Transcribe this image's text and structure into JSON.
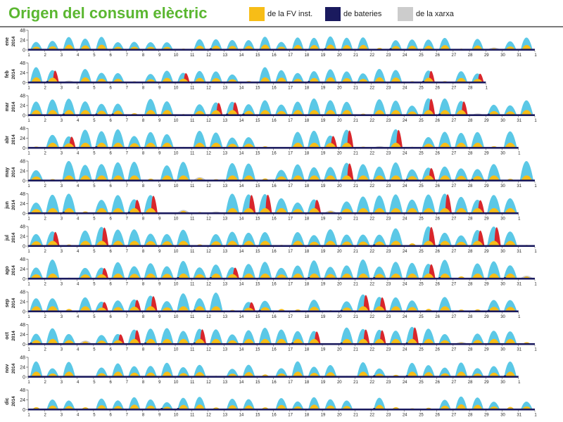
{
  "title": "Origen del consum elèctric",
  "colors": {
    "title": "#5bb731",
    "pv": "#f7bd17",
    "batteries": "#1a1a5e",
    "grid": "#cccccc",
    "surplus": "#5bc8e6",
    "peak": "#d9262b",
    "axis": "#444444"
  },
  "legend": [
    {
      "label": "de la FV inst.",
      "color": "#f7bd17"
    },
    {
      "label": "de bateries",
      "color": "#1a1a5e"
    },
    {
      "label": "de la xarxa",
      "color": "#cccccc"
    }
  ],
  "chart_data": {
    "type": "area",
    "title": "Origen del consum elèctric",
    "year_label": "2014",
    "ylim": [
      0,
      48
    ],
    "yticks": [
      0,
      24,
      48
    ],
    "series": [
      "de la FV inst.",
      "de bateries",
      "de la xarxa"
    ],
    "months": [
      {
        "label": "ene",
        "days": 31,
        "next_label": "1"
      },
      {
        "label": "feb",
        "days": 28,
        "next_label": "1"
      },
      {
        "label": "mar",
        "days": 31,
        "next_label": "1"
      },
      {
        "label": "abr",
        "days": 30,
        "next_label": "1"
      },
      {
        "label": "may",
        "days": 31,
        "next_label": "1"
      },
      {
        "label": "jun",
        "days": 30,
        "next_label": "1"
      },
      {
        "label": "jul",
        "days": 31,
        "next_label": "1"
      },
      {
        "label": "ago",
        "days": 31,
        "next_label": "1"
      },
      {
        "label": "sep",
        "days": 30,
        "next_label": "1"
      },
      {
        "label": "oct",
        "days": 31,
        "next_label": "1"
      },
      {
        "label": "nov",
        "days": 30,
        "next_label": "1"
      },
      {
        "label": "dic",
        "days": 31,
        "next_label": "1"
      }
    ]
  }
}
